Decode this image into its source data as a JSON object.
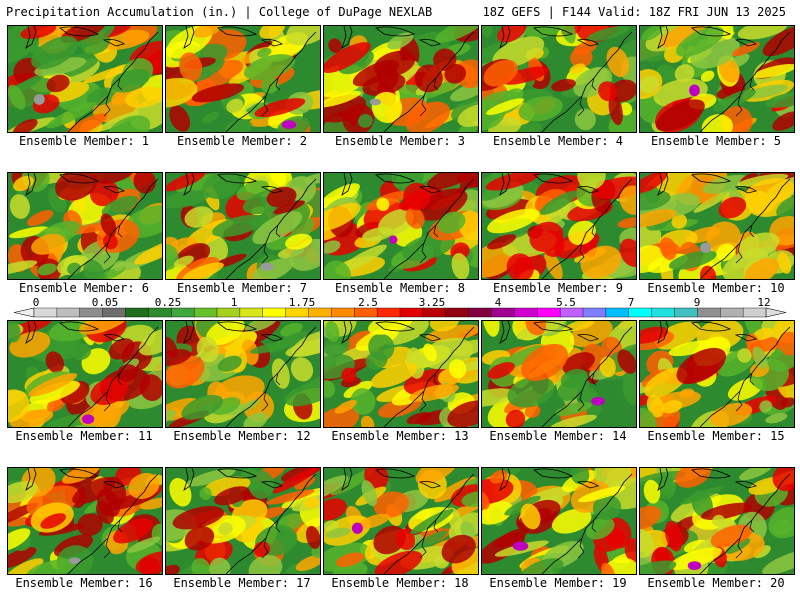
{
  "header": {
    "left": "Precipitation Accumulation (in.) | College of DuPage NEXLAB",
    "right": "18Z GEFS | F144 Valid: 18Z FRI JUN 13 2025"
  },
  "members": [
    {
      "label": "Ensemble Member: 1"
    },
    {
      "label": "Ensemble Member: 2"
    },
    {
      "label": "Ensemble Member: 3"
    },
    {
      "label": "Ensemble Member: 4"
    },
    {
      "label": "Ensemble Member: 5"
    },
    {
      "label": "Ensemble Member: 6"
    },
    {
      "label": "Ensemble Member: 7"
    },
    {
      "label": "Ensemble Member: 8"
    },
    {
      "label": "Ensemble Member: 9"
    },
    {
      "label": "Ensemble Member: 10"
    },
    {
      "label": "Ensemble Member: 11"
    },
    {
      "label": "Ensemble Member: 12"
    },
    {
      "label": "Ensemble Member: 13"
    },
    {
      "label": "Ensemble Member: 14"
    },
    {
      "label": "Ensemble Member: 15"
    },
    {
      "label": "Ensemble Member: 16"
    },
    {
      "label": "Ensemble Member: 17"
    },
    {
      "label": "Ensemble Member: 18"
    },
    {
      "label": "Ensemble Member: 19"
    },
    {
      "label": "Ensemble Member: 20"
    }
  ],
  "colorbar": {
    "tick_labels": [
      "0",
      "0.05",
      "0.25",
      "1",
      "1.75",
      "2.5",
      "3.25",
      "4",
      "5.5",
      "7",
      "9",
      "12"
    ],
    "colors": [
      "#d8d8d8",
      "#bdbdbd",
      "#8e8e8e",
      "#6e6e6e",
      "#1f6f1f",
      "#2e8b2e",
      "#3ea83e",
      "#66c12a",
      "#a6d11e",
      "#d8e51a",
      "#ffff00",
      "#ffd400",
      "#ffb000",
      "#ff8c00",
      "#ff6000",
      "#ff2800",
      "#e00000",
      "#b80000",
      "#900010",
      "#800040",
      "#a00090",
      "#d000d0",
      "#ff00ff",
      "#c060ff",
      "#8080ff",
      "#00c0ff",
      "#00ffff",
      "#20e0e0",
      "#40c0c0",
      "#909090",
      "#b0b0b0",
      "#d0d0d0"
    ]
  }
}
